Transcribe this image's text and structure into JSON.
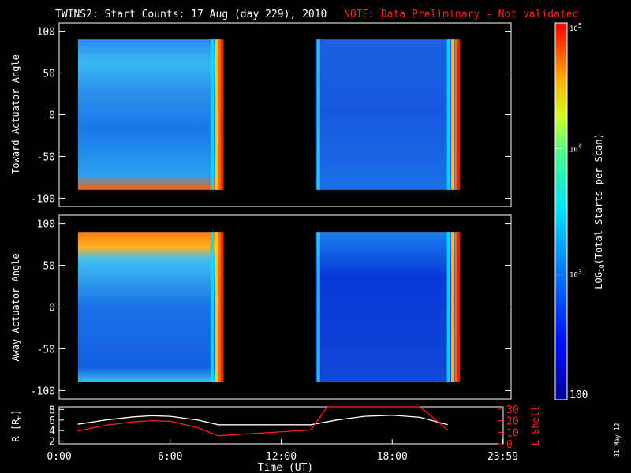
{
  "header": {
    "title": "TWINS2: Start Counts: 17 Aug (day 229), 2010",
    "note": "NOTE: Data Preliminary - Not validated"
  },
  "side_note": "31 May 12",
  "colorbar": {
    "label_main": "LOG",
    "label_sub": "10",
    "label_rest": "(Total Starts per Scan)",
    "ticks": [
      {
        "value": 100,
        "label": "100"
      },
      {
        "value": 1000,
        "label": "10",
        "exp": "3"
      },
      {
        "value": 10000,
        "label": "10",
        "exp": "4"
      },
      {
        "value": 100000,
        "label": "10",
        "exp": "5"
      }
    ],
    "range": [
      100,
      100000
    ],
    "scale": "log"
  },
  "colors": {
    "background": "#000000",
    "axis": "#ffffff",
    "note": "#ff2020",
    "r_line": "#ffffff",
    "l_line": "#ff2020"
  },
  "chart_data": [
    {
      "type": "heatmap",
      "name": "toward",
      "ylabel": "Toward Actuator Angle",
      "ylim": [
        -110,
        110
      ],
      "yticks": [
        100,
        50,
        0,
        -50,
        -100
      ],
      "xlim": [
        0,
        24
      ],
      "data_intervals_hours": [
        [
          1.0,
          8.65
        ],
        [
          13.6,
          21.2
        ]
      ]
    },
    {
      "type": "heatmap",
      "name": "away",
      "ylabel": "Away Actuator Angle",
      "ylim": [
        -110,
        110
      ],
      "yticks": [
        100,
        50,
        0,
        -50,
        -100
      ],
      "xlim": [
        0,
        24
      ],
      "data_intervals_hours": [
        [
          1.0,
          8.65
        ],
        [
          13.6,
          21.2
        ]
      ]
    },
    {
      "type": "line",
      "name": "ephemeris",
      "xlabel": "Time (UT)",
      "xticks": [
        "0:00",
        "6:00",
        "12:00",
        "18:00",
        "23:59"
      ],
      "xlim": [
        0,
        24
      ],
      "left_axis": {
        "label": "R [R",
        "label_sub": "E",
        "label_end": "]",
        "ticks": [
          2,
          4,
          6,
          8
        ],
        "ylim": [
          1.5,
          8.5
        ]
      },
      "right_axis": {
        "label": "L Shell",
        "ticks": [
          0,
          10,
          20,
          30
        ],
        "ylim": [
          0,
          32
        ]
      },
      "series": [
        {
          "name": "R",
          "axis": "left",
          "x": [
            1.0,
            2.5,
            4.0,
            5.0,
            6.0,
            7.5,
            8.6,
            13.6,
            15.0,
            16.5,
            18.0,
            19.5,
            21.0
          ],
          "values": [
            5.2,
            6.0,
            6.6,
            6.8,
            6.7,
            6.0,
            5.1,
            5.1,
            6.0,
            6.7,
            6.9,
            6.5,
            5.1
          ]
        },
        {
          "name": "L",
          "axis": "right",
          "x": [
            1.0,
            2.5,
            4.0,
            5.0,
            6.0,
            7.5,
            8.6,
            13.6,
            14.5,
            19.5,
            21.0
          ],
          "values": [
            11,
            16,
            19,
            20,
            19.5,
            14,
            7,
            12,
            32,
            32,
            12
          ]
        }
      ]
    }
  ]
}
